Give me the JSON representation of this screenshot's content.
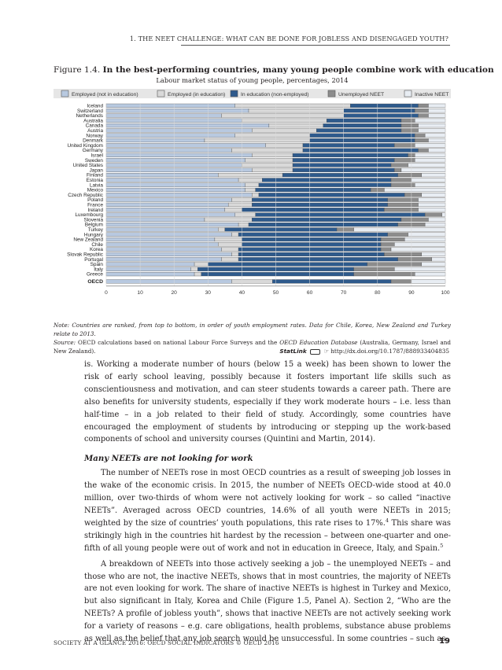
{
  "header": {
    "running_head": "1.   THE NEET CHALLENGE: WHAT CAN BE DONE FOR JOBLESS AND DISENGAGED YOUTH?"
  },
  "figure": {
    "label": "Figure 1.4.",
    "title": "In the best-performing countries, many young people combine work with education",
    "subtitle": "Labour market status of young people, percentages, 2014",
    "note": "Note: Countries are ranked, from top to bottom, in order of youth employment rates. Data for Chile, Korea, New Zealand and Turkey relate to 2013.",
    "source_label": "Source:",
    "source_text_1": " OECD calculations based on national Labour Force Surveys and the ",
    "source_italic": "OECD Education Database",
    "source_text_2": " (Australia, Germany, Israel and New Zealand).",
    "statlink_brand": "StatLink",
    "statlink_url": "http://dx.doi.org/10.1787/888933404835"
  },
  "chart_data": {
    "type": "bar",
    "orientation": "horizontal",
    "stacked": true,
    "xlim": [
      0,
      100
    ],
    "x_ticks": [
      0,
      10,
      20,
      30,
      40,
      50,
      60,
      70,
      80,
      90,
      100
    ],
    "legend_position": "top",
    "series": [
      {
        "name": "Employed (not in education)",
        "color": "#b8c9e0"
      },
      {
        "name": "Employed (in education)",
        "color": "#d9d9d9"
      },
      {
        "name": "In education (non-employed)",
        "color": "#2e5a8c"
      },
      {
        "name": "Unemployed NEET",
        "color": "#8c8c8c"
      },
      {
        "name": "Inactive NEET",
        "color": "#e8edf3"
      }
    ],
    "categories": [
      "Iceland",
      "Switzerland",
      "Netherlands",
      "Australia",
      "Canada",
      "Austria",
      "Norway",
      "Denmark",
      "United Kingdom",
      "Germany",
      "Israel",
      "Sweden",
      "United States",
      "Japan",
      "Finland",
      "Estonia",
      "Latvia",
      "Mexico",
      "Czech Republic",
      "Poland",
      "France",
      "Ireland",
      "Luxembourg",
      "Slovenia",
      "Belgium",
      "Turkey",
      "Hungary",
      "New Zealand",
      "Chile",
      "Korea",
      "Slovak Republic",
      "Portugal",
      "Spain",
      "Italy",
      "Greece",
      "OECD"
    ],
    "values": [
      [
        38,
        34,
        20,
        3,
        5
      ],
      [
        42,
        28,
        21,
        4,
        5
      ],
      [
        34,
        36,
        22,
        3,
        5
      ],
      [
        40,
        25,
        22,
        4,
        9
      ],
      [
        48,
        16,
        23,
        5,
        8
      ],
      [
        43,
        19,
        25,
        5,
        8
      ],
      [
        38,
        22,
        31,
        3,
        6
      ],
      [
        29,
        31,
        31,
        4,
        5
      ],
      [
        47,
        11,
        27,
        6,
        9
      ],
      [
        37,
        21,
        34,
        3,
        5
      ],
      [
        43,
        12,
        34,
        2,
        9
      ],
      [
        41,
        14,
        30,
        6,
        9
      ],
      [
        40,
        15,
        29,
        5,
        11
      ],
      [
        43,
        12,
        30,
        2,
        13
      ],
      [
        33,
        19,
        34,
        7,
        7
      ],
      [
        39,
        7,
        38,
        6,
        10
      ],
      [
        41,
        4,
        39,
        7,
        9
      ],
      [
        41,
        3,
        34,
        4,
        18
      ],
      [
        43,
        2,
        43,
        5,
        7
      ],
      [
        37,
        6,
        40,
        9,
        8
      ],
      [
        36,
        7,
        40,
        9,
        8
      ],
      [
        35,
        5,
        42,
        10,
        8
      ],
      [
        38,
        6,
        50,
        5,
        1
      ],
      [
        29,
        14,
        44,
        8,
        5
      ],
      [
        39,
        3,
        44,
        8,
        6
      ],
      [
        33,
        2,
        33,
        5,
        27
      ],
      [
        37,
        2,
        44,
        6,
        11
      ],
      [
        32,
        8,
        41,
        7,
        12
      ],
      [
        33,
        7,
        41,
        4,
        15
      ],
      [
        34,
        5,
        42,
        3,
        16
      ],
      [
        37,
        2,
        43,
        11,
        7
      ],
      [
        34,
        5,
        47,
        10,
        4
      ],
      [
        26,
        4,
        47,
        16,
        7
      ],
      [
        25,
        2,
        46,
        12,
        15
      ],
      [
        26,
        2,
        45,
        18,
        9
      ],
      [
        37,
        12,
        35,
        6,
        10
      ]
    ]
  },
  "body": {
    "p1": "is. Working a moderate number of hours (below 15 a week) has been shown to lower the risk of early school leaving, possibly because it fosters important life skills such as conscientiousness and motivation, and can steer students towards a career path. There are also benefits for university students, especially if they work moderate hours – i.e. less than half-time – in a job related to their field of study. Accordingly, some countries have encouraged the employment of students by introducing or stepping up the work-based components of school and university courses (Quintini and Martin, 2014).",
    "heading": "Many NEETs are not looking for work",
    "p2": "The number of NEETs rose in most OECD countries as a result of sweeping job losses in the wake of the economic crisis. In 2015, the number of NEETs OECD-wide stood at 40.0 million, over two-thirds of whom were not actively looking for work – so called “inactive NEETs”. Averaged across OECD countries, 14.6% of all youth were NEETs in 2015; weighted by the size of countries’ youth populations, this rate rises to 17%.",
    "p2_sup1": "4",
    "p2_b": " This share was strikingly high in the countries hit hardest by the recession – between one-quarter and one-fifth of all young people were out of work and not in education in Greece, Italy, and Spain.",
    "p2_sup2": "5",
    "p3": "A breakdown of NEETs into those actively seeking a job – the unemployed NEETs – and those who are not, the inactive NEETs, shows that in most countries, the majority of NEETs are not even looking for work. The share of inactive NEETs is highest in Turkey and Mexico, but also significant in Italy, Korea and Chile (Figure 1.5, Panel A). Section 2, “Who are the NEETs? A profile of jobless youth”, shows that inactive NEETs are not actively seeking work for a variety of reasons – e.g. care obligations, health problems, substance abuse problems as well as the belief that any job search would be unsuccessful. In some countries – such as"
  },
  "footer": {
    "left": "SOCIETY AT A GLANCE 2016: OECD SOCIAL INDICATORS © OECD 2016",
    "page": "19"
  }
}
